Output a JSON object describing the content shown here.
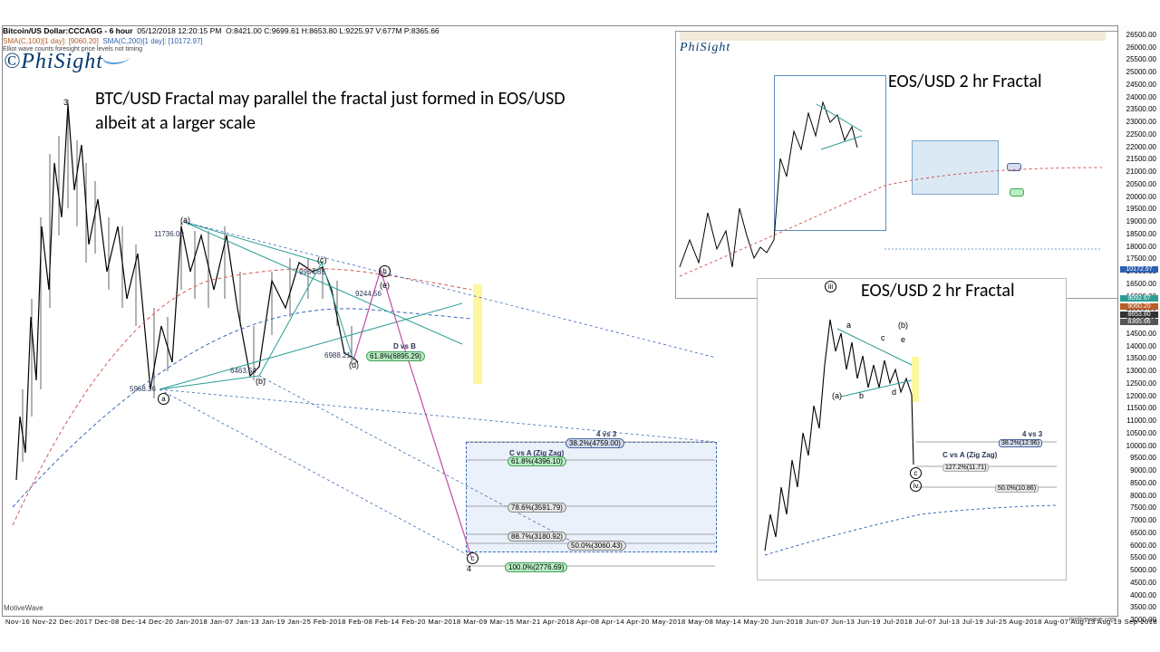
{
  "header": {
    "instrument": "Bitcoin/US Dollar:CCCAGG - 6 hour",
    "timestamp": "05/12/2018 12:20:15 PM",
    "ohlc": "O:8421.00 C:9699.61 H:8653.80 L:9225.97 V:677M P:8365.66",
    "sma1": "SMA(C,100)[1 day]:",
    "sma1_val": "[9060.20]",
    "sma2": "SMA(C,200)[1 day]:",
    "sma2_val": "[10172.97]",
    "note_small": "Elliot wave counts foresight price levels not timing"
  },
  "logo": {
    "copy": "©",
    "name": "PhiSight"
  },
  "annotation": {
    "line1": "BTC/USD Fractal may parallel the fractal just formed in EOS/USD",
    "line2": "albeit at a larger scale"
  },
  "inset_labels": {
    "top": "EOS/USD 2 hr Fractal",
    "bottom": "EOS/USD 2 hr Fractal"
  },
  "main_chart": {
    "wave_labels": {
      "three": "3",
      "a_top_paren": "(a)",
      "a_circ": "a",
      "b_circ": "(b)",
      "c_paren": "(c)",
      "d_paren": "(d)",
      "e_paren": "(e)",
      "b_proj": "(b)",
      "c_proj": "c",
      "four": "4"
    },
    "price_labels": {
      "top_11736": "11736.00",
      "val_9954": "9954.85",
      "val_9244": "9244.56",
      "val_6988": "6988.21",
      "val_6463": "6463.54",
      "val_5968": "5968.36"
    },
    "fib_titles": {
      "DvsB": "D vs B",
      "CvsA": "C vs A (Zig Zag)",
      "four_vs_3": "4 vs 3"
    },
    "fib_main": {
      "r618": "61.8%(6895.29)",
      "r382": "38.2%(4759.00)",
      "r618b": "61.8%(4396.10)",
      "r786": "78.6%(3591.79)",
      "r887": "88.7%(3180.92)",
      "r500": "50.0%(3060.43)",
      "r1000": "100.0%(2776.69)"
    }
  },
  "inset_bottom": {
    "waves": {
      "iii": "iii",
      "a_paren": "(a)",
      "b": "b",
      "c": "c",
      "d": "d",
      "e": "e",
      "a": "a",
      "b_paren": "(b)",
      "c_paren": "(c)",
      "iv": "iv"
    },
    "fib_titles": {
      "CvsA": "C vs A (Zig Zag)",
      "four_vs_3": "4 vs 3"
    },
    "fib": {
      "r382": "38.2%(12.96)",
      "r1272": "127.2%(11.71)",
      "r500": "50.0%(10.86)"
    }
  },
  "y_axis": {
    "ticks": [
      26500,
      26000,
      25500,
      25000,
      24500,
      24000,
      23500,
      23000,
      22500,
      22000,
      21500,
      21000,
      20500,
      20000,
      19500,
      19000,
      18500,
      18000,
      17500,
      17000,
      16500,
      16000,
      15500,
      15000,
      14500,
      14000,
      13500,
      13000,
      12500,
      12000,
      11500,
      11000,
      10500,
      10000,
      9500,
      9000,
      8500,
      8000,
      7500,
      7000,
      6500,
      6000,
      5500,
      5000,
      4500,
      4000,
      3500,
      3000
    ],
    "marker_a": "10172.97",
    "marker_b": "9092.67",
    "marker_c": "8653.80",
    "marker_d": "8365.66",
    "marker_e": "9060.20"
  },
  "x_axis": {
    "labels": "Nov-16  Nov-22 Dec-2017  Dec-08  Dec-14  Dec-20        Jan-2018 Jan-07  Jan-13  Jan-19  Jan-25    Feb-2018 Feb-08  Feb-14  Feb-20        Mar-2018 Mar-09  Mar-15  Mar-21        Apr-2018 Apr-08  Apr-14  Apr-20        May-2018 May-08  May-14  May-20        Jun-2018 Jun-07  Jun-13  Jun-19        Jul-2018 Jul-07  Jul-13  Jul-19  Jul-25    Aug-2018 Aug-07  Aug-13  Aug-19        Sep-2018"
  },
  "footer": {
    "left": "MotiveWave",
    "right": "motivewave.com"
  },
  "colors": {
    "blue_line": "#3a68b8",
    "red_dash": "#d15b5b",
    "magenta": "#c04ca1",
    "teal": "#2a9e94",
    "yellow": "#fdf8a0",
    "box_blue": "#5b8cc5",
    "chip_navy": "#d4dcee"
  }
}
